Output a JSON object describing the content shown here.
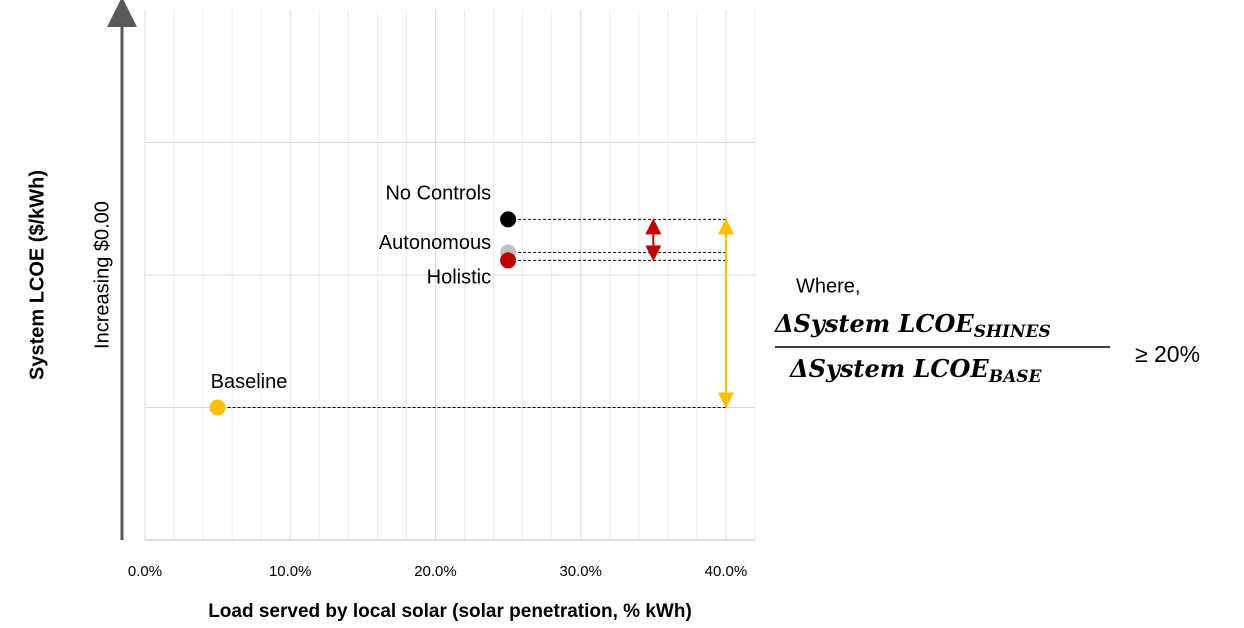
{
  "chart_data": {
    "type": "scatter",
    "y_axis_title": "System LCOE ($/kWh)",
    "y_axis_subtitle": "Increasing $0.00",
    "x_axis_title": "Load served by local solar (solar penetration, % kWh)",
    "xlim": [
      0,
      42
    ],
    "ylim": [
      0,
      4
    ],
    "xticks": [
      {
        "value": 0,
        "label": "0.0%"
      },
      {
        "value": 10,
        "label": "10.0%"
      },
      {
        "value": 20,
        "label": "20.0%"
      },
      {
        "value": 30,
        "label": "30.0%"
      },
      {
        "value": 40,
        "label": "40.0%"
      }
    ],
    "xminorticks": [
      2,
      4,
      6,
      8,
      12,
      14,
      16,
      18,
      22,
      24,
      26,
      28,
      32,
      34,
      36,
      38,
      42
    ],
    "yticks": [
      1,
      2,
      3
    ],
    "grid": true,
    "series": [
      {
        "name": "No Controls",
        "color": "#000000",
        "x": [
          25
        ],
        "values": [
          2.42
        ]
      },
      {
        "name": "Autonomous",
        "color": "#bfbfbf",
        "x": [
          25
        ],
        "values": [
          2.17
        ]
      },
      {
        "name": "Holistic",
        "color": "#c00000",
        "x": [
          25
        ],
        "values": [
          2.11
        ]
      },
      {
        "name": "Baseline",
        "color": "#ffc000",
        "x": [
          5
        ],
        "values": [
          1.0
        ]
      }
    ],
    "reference_x": 40,
    "shines_arrow_x": 35,
    "annotation": {
      "where": "Where,",
      "numerator": "ΔSystem LCOE",
      "numerator_sub": "SHINES",
      "numerator_color": "#c00000",
      "denominator": "ΔSystem LCOE",
      "denominator_sub": "BASE",
      "denominator_color": "#ffc000",
      "relation": "≥ 20%"
    }
  }
}
